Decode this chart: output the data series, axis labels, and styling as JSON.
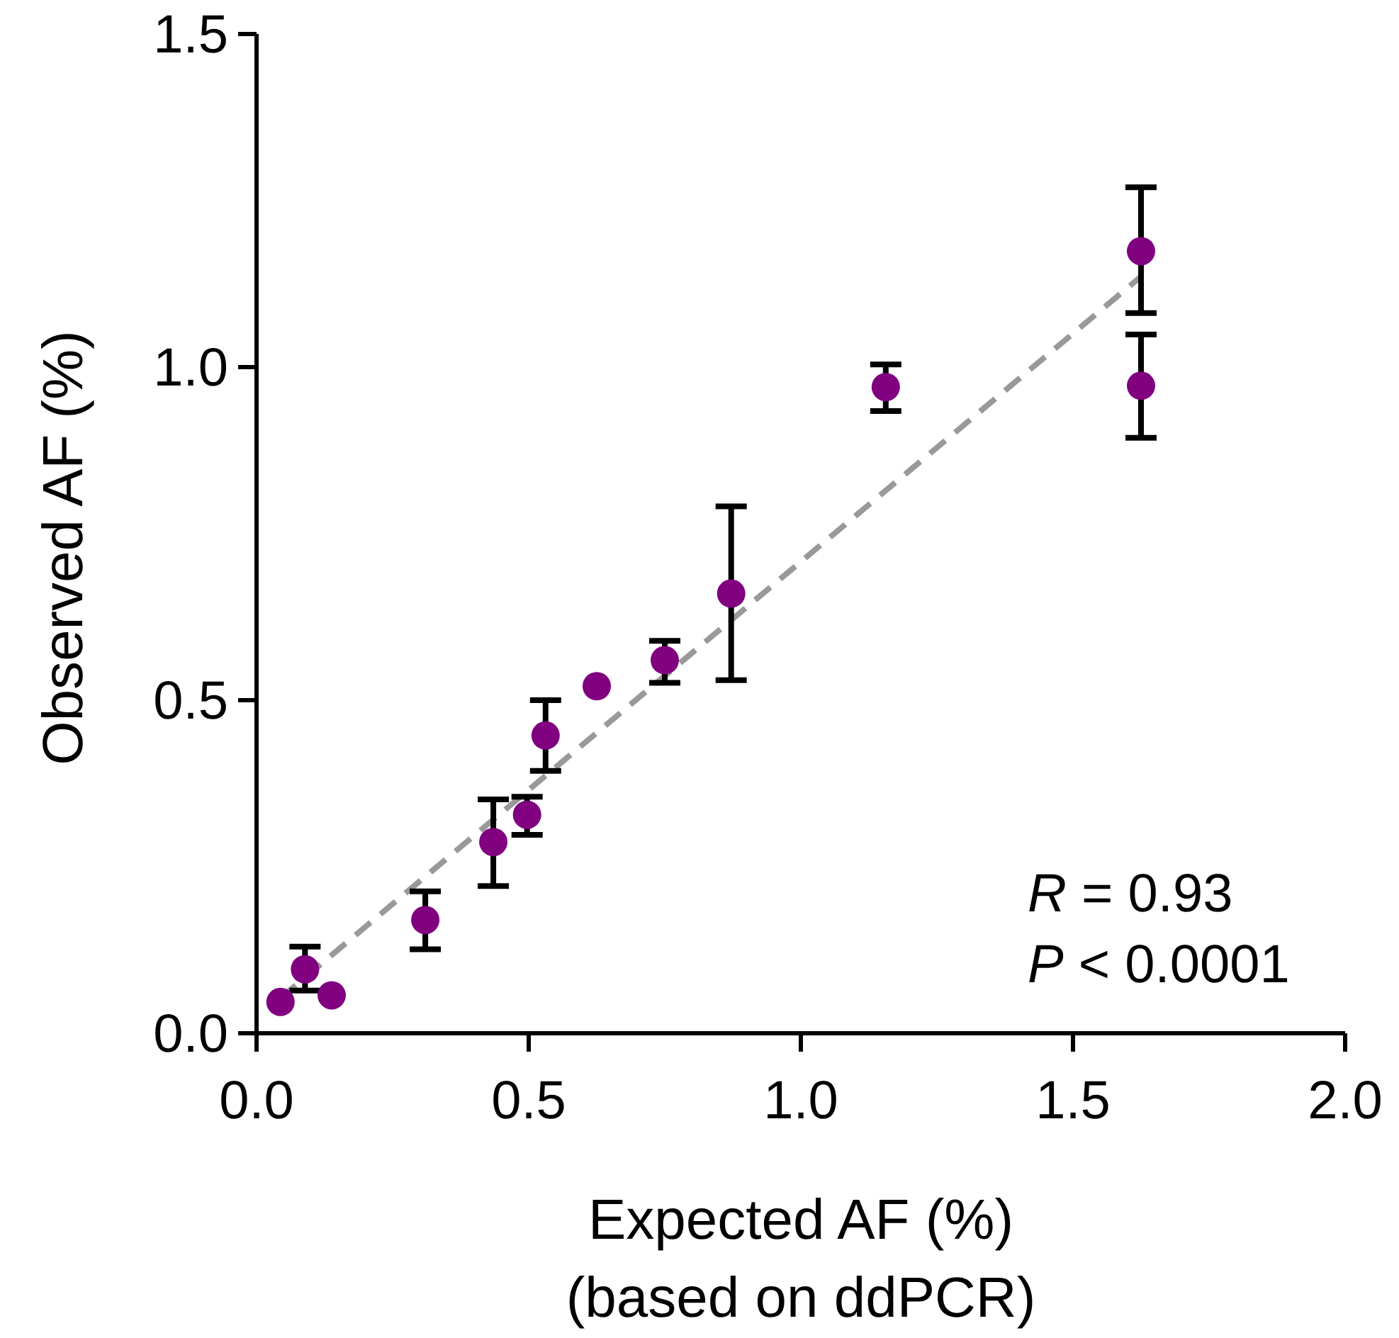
{
  "chart_data": {
    "type": "scatter",
    "xlabel": "Expected AF (%)\n(based on ddPCR)",
    "ylabel": "Observed AF (%)",
    "xlim": [
      0,
      2
    ],
    "xticks": [
      {
        "value": 0,
        "label": "0.0"
      },
      {
        "value": 0.5,
        "label": "0.5"
      },
      {
        "value": 1,
        "label": "1.0"
      },
      {
        "value": 1.5,
        "label": "1.5"
      },
      {
        "value": 2,
        "label": "2.0"
      }
    ],
    "ylim": [
      0,
      1.5
    ],
    "yticks": [
      {
        "value": 0,
        "label": "0.0"
      },
      {
        "value": 0.5,
        "label": "0.5"
      },
      {
        "value": 1,
        "label": "1.0"
      },
      {
        "value": 1.5,
        "label": "1.5"
      }
    ],
    "grid": false,
    "series": [
      {
        "type": "line",
        "color": "#999999",
        "line_style": "dashed",
        "marker": "none",
        "x": [
          0.044,
          1.625
        ],
        "values": [
          0.053,
          1.136
        ]
      },
      {
        "color": "#800080",
        "marker": "circle",
        "x": [
          0.044,
          0.089,
          0.138,
          0.31,
          0.435,
          0.497,
          0.531,
          0.625,
          0.75,
          0.872,
          1.156,
          1.625,
          1.625
        ],
        "values": [
          0.047,
          0.096,
          0.057,
          0.17,
          0.287,
          0.328,
          0.447,
          0.521,
          0.56,
          0.66,
          0.97,
          1.174,
          0.972
        ],
        "errors": [
          null,
          [
            0.064,
            0.13
          ],
          null,
          [
            0.126,
            0.213
          ],
          [
            0.221,
            0.351
          ],
          [
            0.298,
            0.355
          ],
          [
            0.394,
            0.5
          ],
          null,
          [
            0.526,
            0.589
          ],
          [
            0.53,
            0.791
          ],
          [
            0.934,
            1.004
          ],
          [
            1.081,
            1.27
          ],
          [
            0.894,
            1.049
          ]
        ]
      }
    ],
    "annotations": [
      "R = 0.93",
      "P < 0.0001"
    ]
  }
}
